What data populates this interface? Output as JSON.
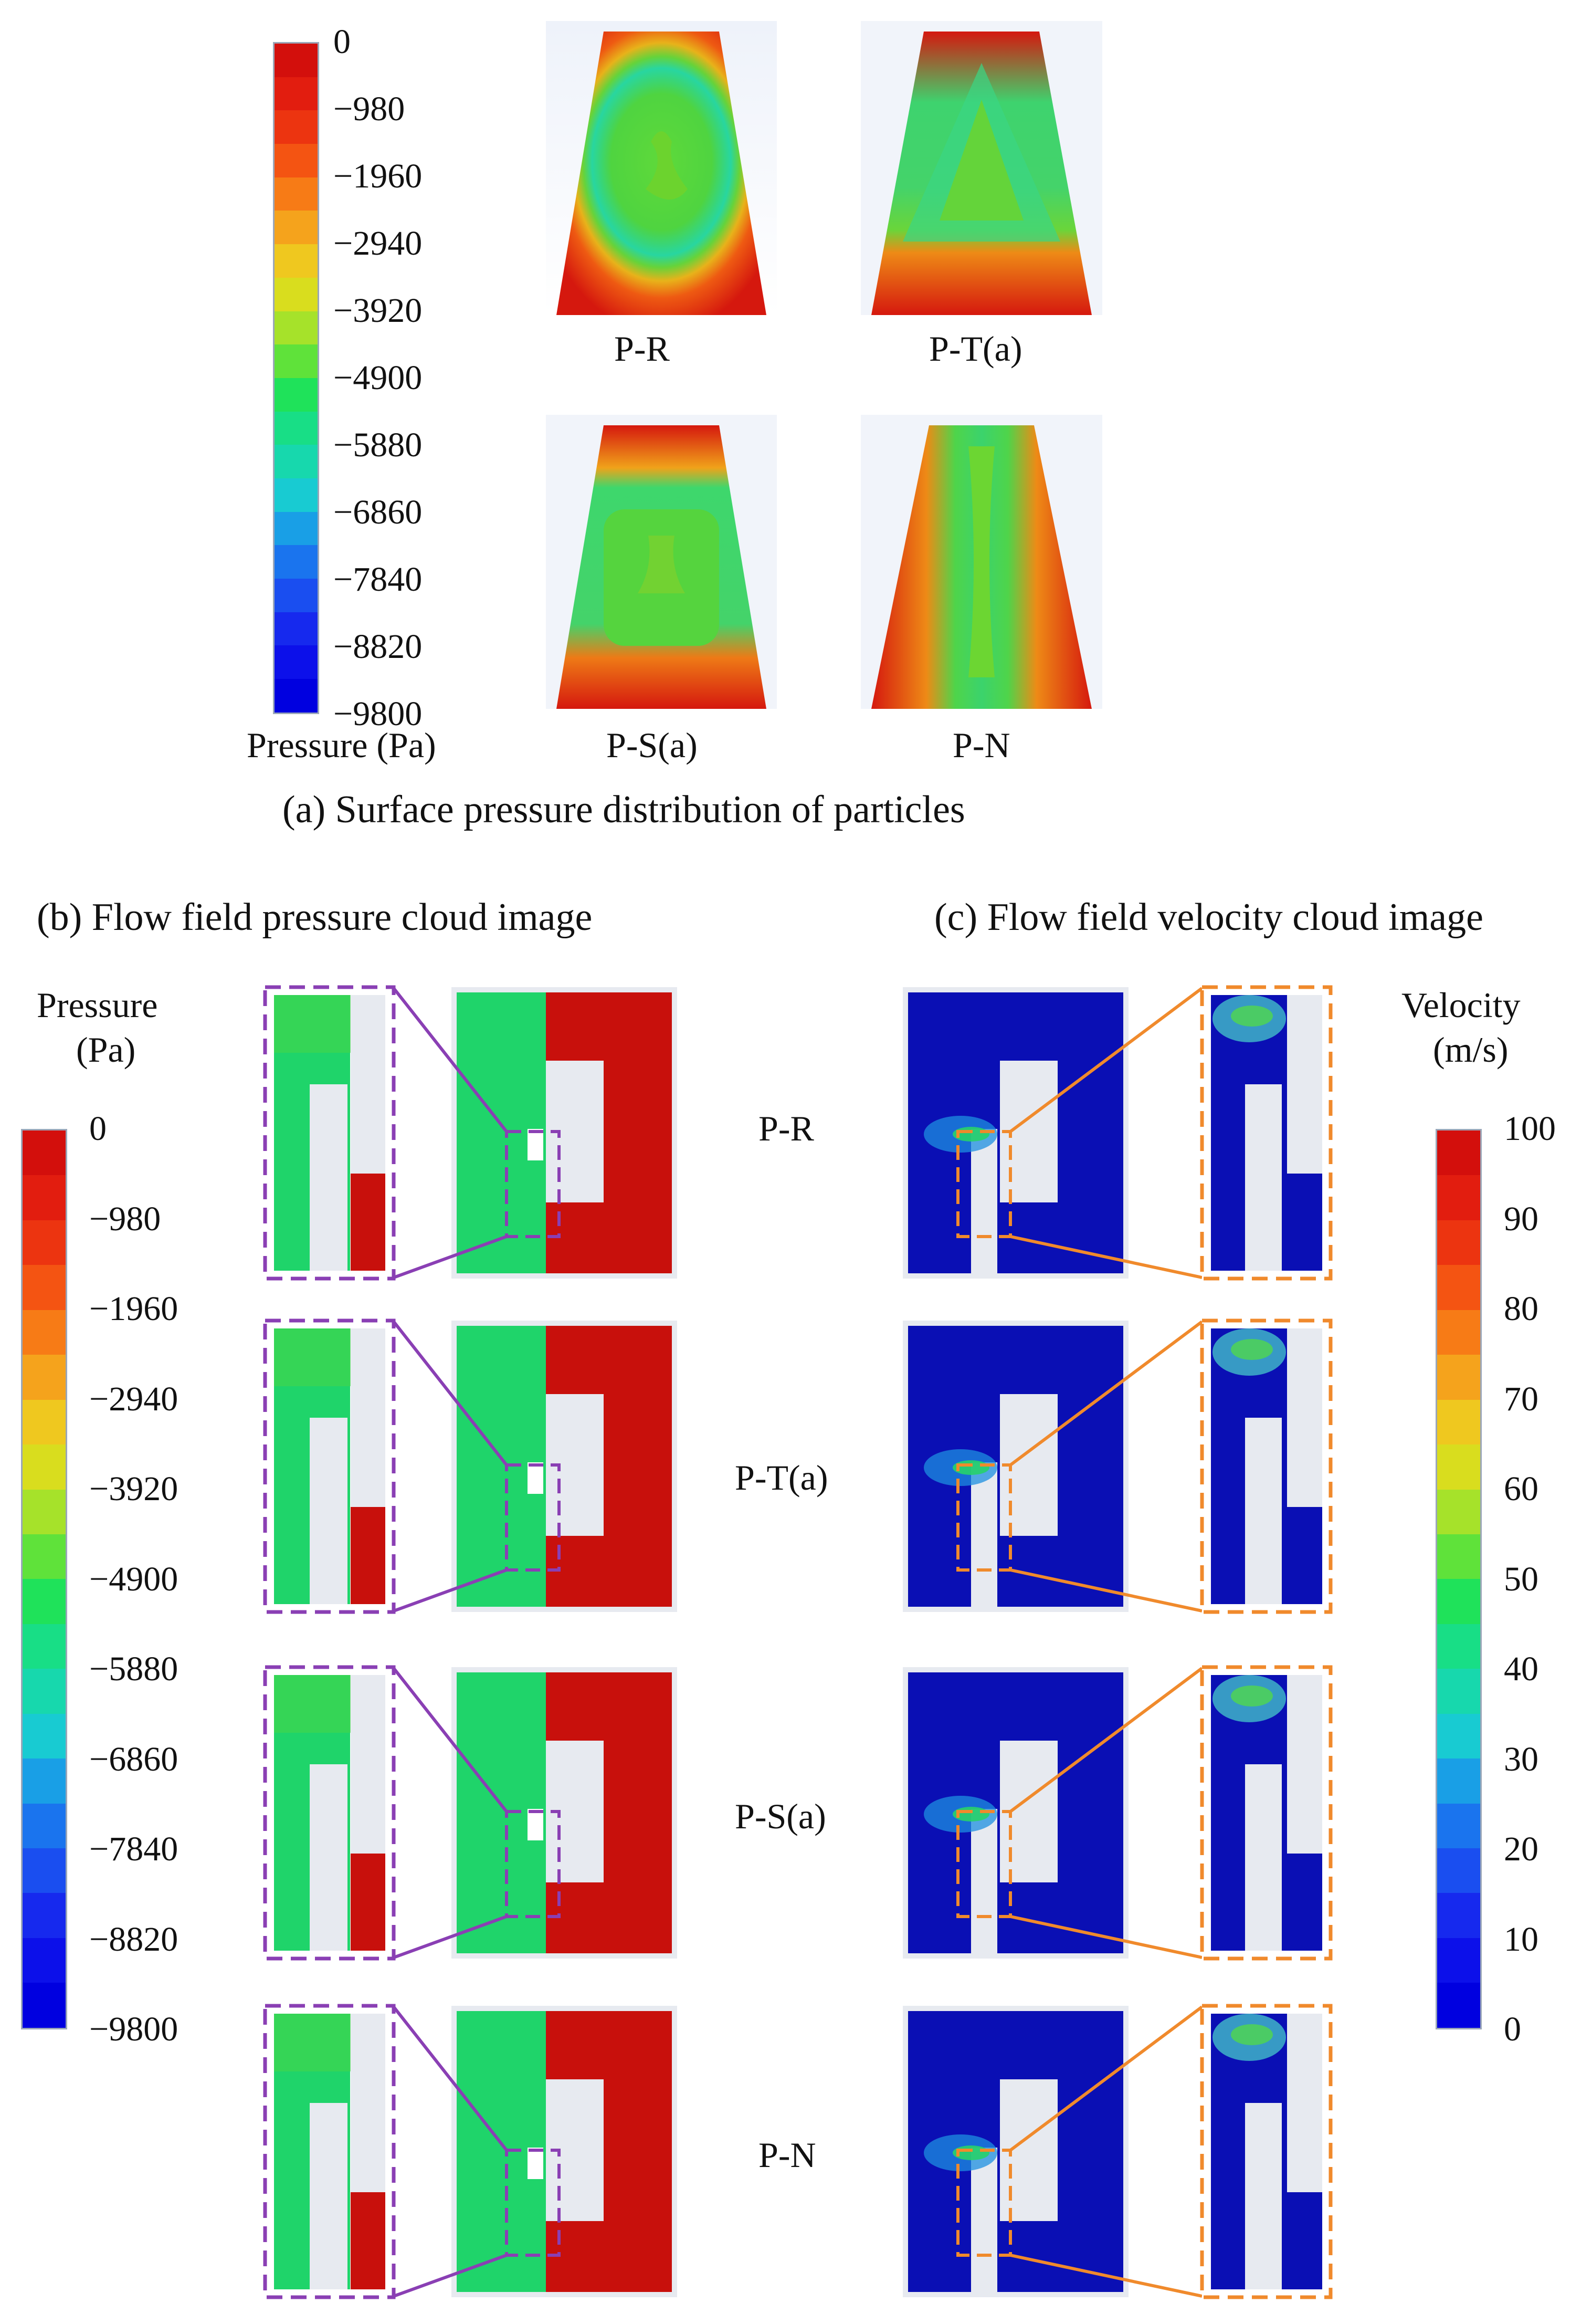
{
  "top": {
    "colorbar_ticks": [
      "0",
      "−980",
      "−1960",
      "−2940",
      "−3920",
      "−4900",
      "−5880",
      "−6860",
      "−7840",
      "−8820",
      "−9800"
    ],
    "colorbar_label": "Pressure (Pa)",
    "particles": [
      "P-R",
      "P-T(a)",
      "P-S(a)",
      "P-N"
    ],
    "caption": "(a) Surface pressure distribution of particles"
  },
  "bottom": {
    "caption_b": "(b) Flow field pressure cloud image",
    "caption_c": "(c) Flow field velocity cloud image",
    "pressure_label": [
      "Pressure",
      "(Pa)"
    ],
    "pressure_ticks": [
      "0",
      "−980",
      "−1960",
      "−2940",
      "−3920",
      "−4900",
      "−5880",
      "−6860",
      "−7840",
      "−8820",
      "−9800"
    ],
    "velocity_label": [
      "Velocity",
      "(m/s)"
    ],
    "velocity_ticks": [
      "100",
      "90",
      "80",
      "70",
      "60",
      "50",
      "40",
      "30",
      "20",
      "10",
      "0"
    ],
    "row_labels": [
      "P-R",
      "P-T(a)",
      "P-S(a)",
      "P-N"
    ]
  },
  "colors": {
    "pressure_red": "#c8100c",
    "pressure_green": "#1fd46a",
    "velocity_blue": "#0a0fb4",
    "structure_gray": "#e7eaf0",
    "purple_zoom": "#8a3fb4",
    "orange_zoom": "#f08a2c"
  }
}
